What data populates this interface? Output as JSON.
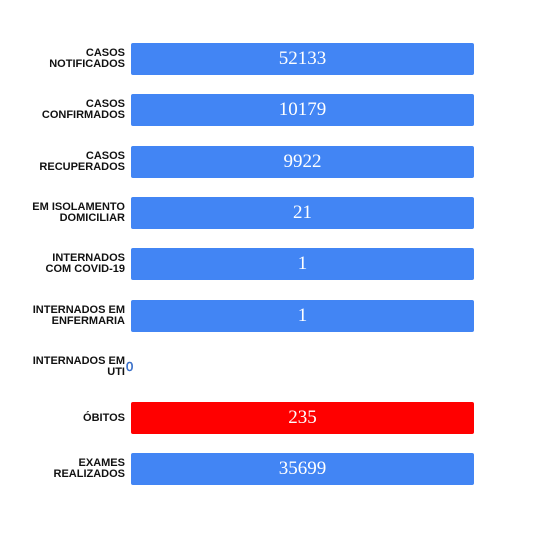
{
  "chart_data": {
    "type": "bar",
    "orientation": "horizontal",
    "categories": [
      [
        "CASOS",
        "NOTIFICADOS"
      ],
      [
        "CASOS",
        "CONFIRMADOS"
      ],
      [
        "CASOS",
        "RECUPERADOS"
      ],
      [
        "EM ISOLAMENTO",
        "DOMICILIAR"
      ],
      [
        "INTERNADOS",
        "COM COVID-19"
      ],
      [
        "INTERNADOS EM",
        "ENFERMARIA"
      ],
      [
        "INTERNADOS EM",
        "UTI"
      ],
      [
        "ÓBITOS"
      ],
      [
        "EXAMES",
        "REALIZADOS"
      ]
    ],
    "values": [
      52133,
      10179,
      9922,
      21,
      1,
      1,
      0,
      235,
      35699
    ],
    "value_labels": [
      "52133",
      "10179",
      "9922",
      "21",
      "1",
      "1",
      "0",
      "235",
      "35699"
    ],
    "colors": [
      "#4285f4",
      "#4285f4",
      "#4285f4",
      "#4285f4",
      "#4285f4",
      "#4285f4",
      "#4285f4",
      "#ff0000",
      "#4285f4"
    ],
    "title": "",
    "xlabel": "",
    "ylabel": "",
    "grid": false,
    "legend": "none"
  }
}
